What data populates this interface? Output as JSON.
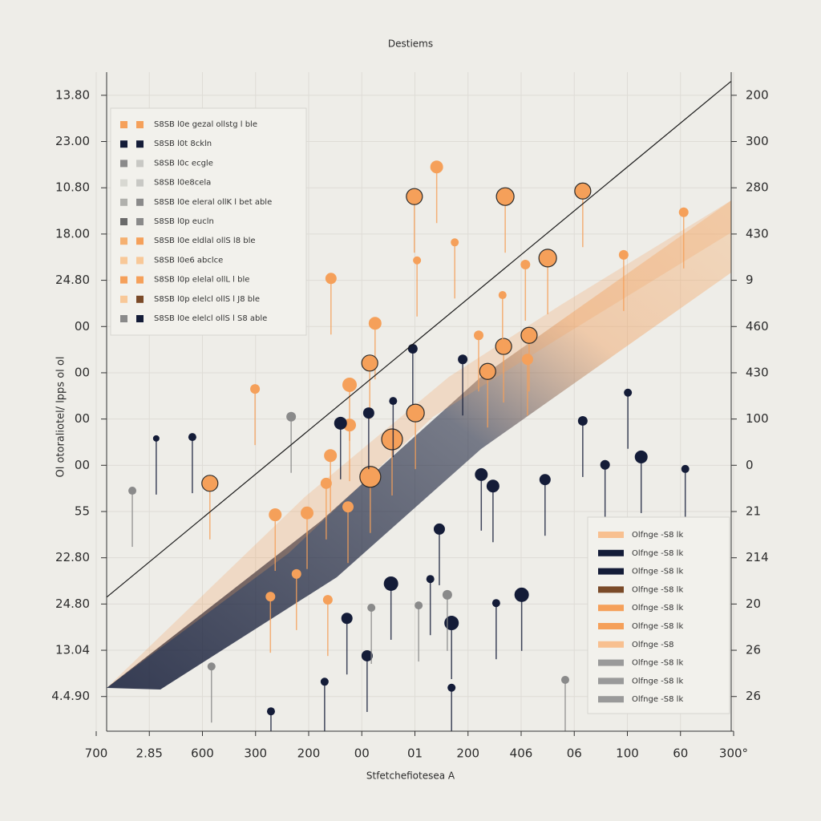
{
  "chart_data": {
    "type": "scatter",
    "title": "Destiems",
    "xlabel": "Stfetchefiotesea A",
    "ylabel": "Ol otoraliotel/ lpps ol ol",
    "grid": true,
    "xlim": [
      0,
      12
    ],
    "xticks": [
      {
        "value": 0,
        "label": "700"
      },
      {
        "value": 1,
        "label": "2.85"
      },
      {
        "value": 2,
        "label": "600"
      },
      {
        "value": 3,
        "label": "300"
      },
      {
        "value": 4,
        "label": "200"
      },
      {
        "value": 5,
        "label": "00"
      },
      {
        "value": 6,
        "label": "01"
      },
      {
        "value": 7,
        "label": "200"
      },
      {
        "value": 8,
        "label": "406"
      },
      {
        "value": 9,
        "label": "06"
      },
      {
        "value": 10,
        "label": "100"
      },
      {
        "value": 11,
        "label": "60"
      },
      {
        "value": 12,
        "label": "300°"
      }
    ],
    "ylim": [
      -0.75,
      13.5
    ],
    "yticks": [
      {
        "value": 13,
        "label": "13.80"
      },
      {
        "value": 12,
        "label": "23.00"
      },
      {
        "value": 11,
        "label": "10.80"
      },
      {
        "value": 10,
        "label": "18.00"
      },
      {
        "value": 9,
        "label": "24.80"
      },
      {
        "value": 8,
        "label": "00"
      },
      {
        "value": 7,
        "label": "00"
      },
      {
        "value": 6,
        "label": "00"
      },
      {
        "value": 5,
        "label": "00"
      },
      {
        "value": 4,
        "label": "55"
      },
      {
        "value": 3,
        "label": "22.80"
      },
      {
        "value": 2,
        "label": "24.80"
      },
      {
        "value": 1,
        "label": "13.04"
      },
      {
        "value": 0,
        "label": "4.4.90"
      }
    ],
    "y2lim": [
      -0.75,
      13.5
    ],
    "y2ticks": [
      {
        "value": 13,
        "label": "200"
      },
      {
        "value": 12,
        "label": "300"
      },
      {
        "value": 11,
        "label": "280"
      },
      {
        "value": 10,
        "label": "430"
      },
      9,
      {
        "value": 8,
        "label": "460"
      },
      {
        "value": 7,
        "label": "430"
      },
      {
        "value": 6,
        "label": "100"
      },
      {
        "value": 5,
        "label": "0"
      },
      {
        "value": 4,
        "label": "21"
      },
      {
        "value": 3,
        "label": "214"
      },
      {
        "value": 2,
        "label": "20"
      },
      {
        "value": 1,
        "label": "26"
      },
      {
        "value": 0,
        "label": "26"
      }
    ],
    "series": [
      {
        "color": "#f5a05a",
        "x": [
          5.99,
          6.41,
          7.7,
          9.16,
          2.14,
          5.16,
          5.57,
          6.01,
          7.37,
          7.67,
          8.15,
          8.5,
          4.42,
          5.25,
          5.15,
          4.77,
          4.41,
          3.97,
          3.37,
          4.74,
          4.33,
          3.77,
          3.28,
          4.36,
          6.75,
          6.04,
          7.2,
          8.08,
          7.65,
          8.12,
          9.93,
          11.06,
          4.77,
          2.99
        ],
        "values": [
          10.81,
          11.45,
          10.81,
          10.93,
          4.61,
          4.75,
          5.56,
          6.13,
          7.03,
          7.57,
          7.81,
          9.48,
          9.04,
          8.07,
          7.21,
          5.87,
          5.21,
          3.97,
          3.93,
          4.1,
          4.61,
          2.65,
          2.16,
          2.09,
          9.82,
          9.43,
          7.81,
          9.34,
          8.68,
          7.29,
          9.55,
          10.47,
          6.74,
          6.65
        ],
        "sizes": [
          10,
          8,
          11,
          10,
          10,
          13,
          13,
          11,
          10,
          10,
          10,
          11,
          7,
          8,
          10,
          8,
          8,
          8,
          8,
          7,
          7,
          6,
          6,
          6,
          5,
          5,
          6,
          6,
          5,
          7,
          6,
          6,
          9,
          6
        ]
      },
      {
        "color": "#141c38",
        "x": [
          1.81,
          4.6,
          5.13,
          5.96,
          7.25,
          7.47,
          8.45,
          10.26,
          9.58,
          9.16,
          6.46,
          5.55,
          4.72,
          5.1,
          6.69,
          8.01,
          6.29,
          3.29,
          6.69,
          4.3,
          11.09,
          10.01,
          1.13,
          6.9,
          5.59,
          7.53
        ],
        "values": [
          5.61,
          5.91,
          6.13,
          7.52,
          4.8,
          4.55,
          4.69,
          5.18,
          5.01,
          5.96,
          3.62,
          2.44,
          1.69,
          0.88,
          1.59,
          2.2,
          2.54,
          -0.32,
          0.19,
          0.32,
          4.92,
          6.57,
          5.58,
          7.29,
          6.39,
          2.02
        ],
        "sizes": [
          5,
          8,
          7,
          6,
          8,
          8,
          7,
          8,
          6,
          6,
          7,
          9,
          7,
          7,
          9,
          9,
          5,
          5,
          5,
          5,
          5,
          5,
          4,
          6,
          5,
          5
        ]
      },
      {
        "color": "#8a8a8a",
        "x": [
          0.68,
          2.17,
          6.61,
          8.83,
          3.67,
          5.18,
          6.07
        ],
        "values": [
          4.45,
          0.65,
          2.2,
          0.36,
          6.05,
          1.92,
          1.97
        ],
        "sizes": [
          5,
          5,
          6,
          5,
          6,
          5,
          5
        ]
      },
      {
        "type": "line",
        "color": "#1a1a1a",
        "x": [
          0.2,
          11.95
        ],
        "values": [
          2.15,
          13.3
        ]
      }
    ],
    "legend_upper_left": [
      {
        "label": "S8SB l0e gezal ollstg l ble",
        "colors": [
          "#f5a05a",
          "#f5a05a"
        ]
      },
      {
        "label": "S8SB l0t 8ckln",
        "colors": [
          "#141c38",
          "#141c38"
        ]
      },
      {
        "label": "S8SB l0c ecgle",
        "colors": [
          "#8a8a8a",
          "#c8c8c4"
        ]
      },
      {
        "label": "S8SB l0e8cela",
        "colors": [
          "#d8d8d2",
          "#c8c8c4"
        ]
      },
      {
        "label": "S8SB l0e eleral ollK l bet able",
        "colors": [
          "#b0b0ac",
          "#8a8a8a"
        ]
      },
      {
        "label": "S8SB l0p eucln",
        "colors": [
          "#6a6a6a",
          "#8a8a8a"
        ]
      },
      {
        "label": "S8SB l0e eldlal ollS l8 ble",
        "colors": [
          "#f5b070",
          "#f5a05a"
        ]
      },
      {
        "label": "S8SB l0e6 abclce",
        "colors": [
          "#f8c898",
          "#f8c898"
        ]
      },
      {
        "label": "S8SB l0p elelal ollL l ble",
        "colors": [
          "#f5a05a",
          "#f5a05a"
        ]
      },
      {
        "label": "S8SB l0p elelcl ollS l J8 ble",
        "colors": [
          "#f8c898",
          "#7a4a28"
        ]
      },
      {
        "label": "S8SB l0e elelcl ollS l S8 able",
        "colors": [
          "#8a8a8a",
          "#141c38"
        ]
      }
    ],
    "legend_lower_right": [
      {
        "label": "Olfnge -S8 lk",
        "color": "#f8c090"
      },
      {
        "label": "Olfnge -S8 lk",
        "color": "#141c38"
      },
      {
        "label": "Olfnge -S8 lk",
        "color": "#141c38"
      },
      {
        "label": "Olfnge -S8 lk",
        "color": "#7a4a28"
      },
      {
        "label": "Olfnge -S8 lk",
        "color": "#f5a05a"
      },
      {
        "label": "Olfnge -S8 lk",
        "color": "#f5a05a"
      },
      {
        "label": "Olfnge -S8",
        "color": "#f8c090"
      },
      {
        "label": "Olfnge -S8 lk",
        "color": "#9a9a9a"
      },
      {
        "label": "Olfnge -S8 lk",
        "color": "#9a9a9a"
      },
      {
        "label": "Olfnge -S8 lk",
        "color": "#9a9a9a"
      }
    ]
  }
}
